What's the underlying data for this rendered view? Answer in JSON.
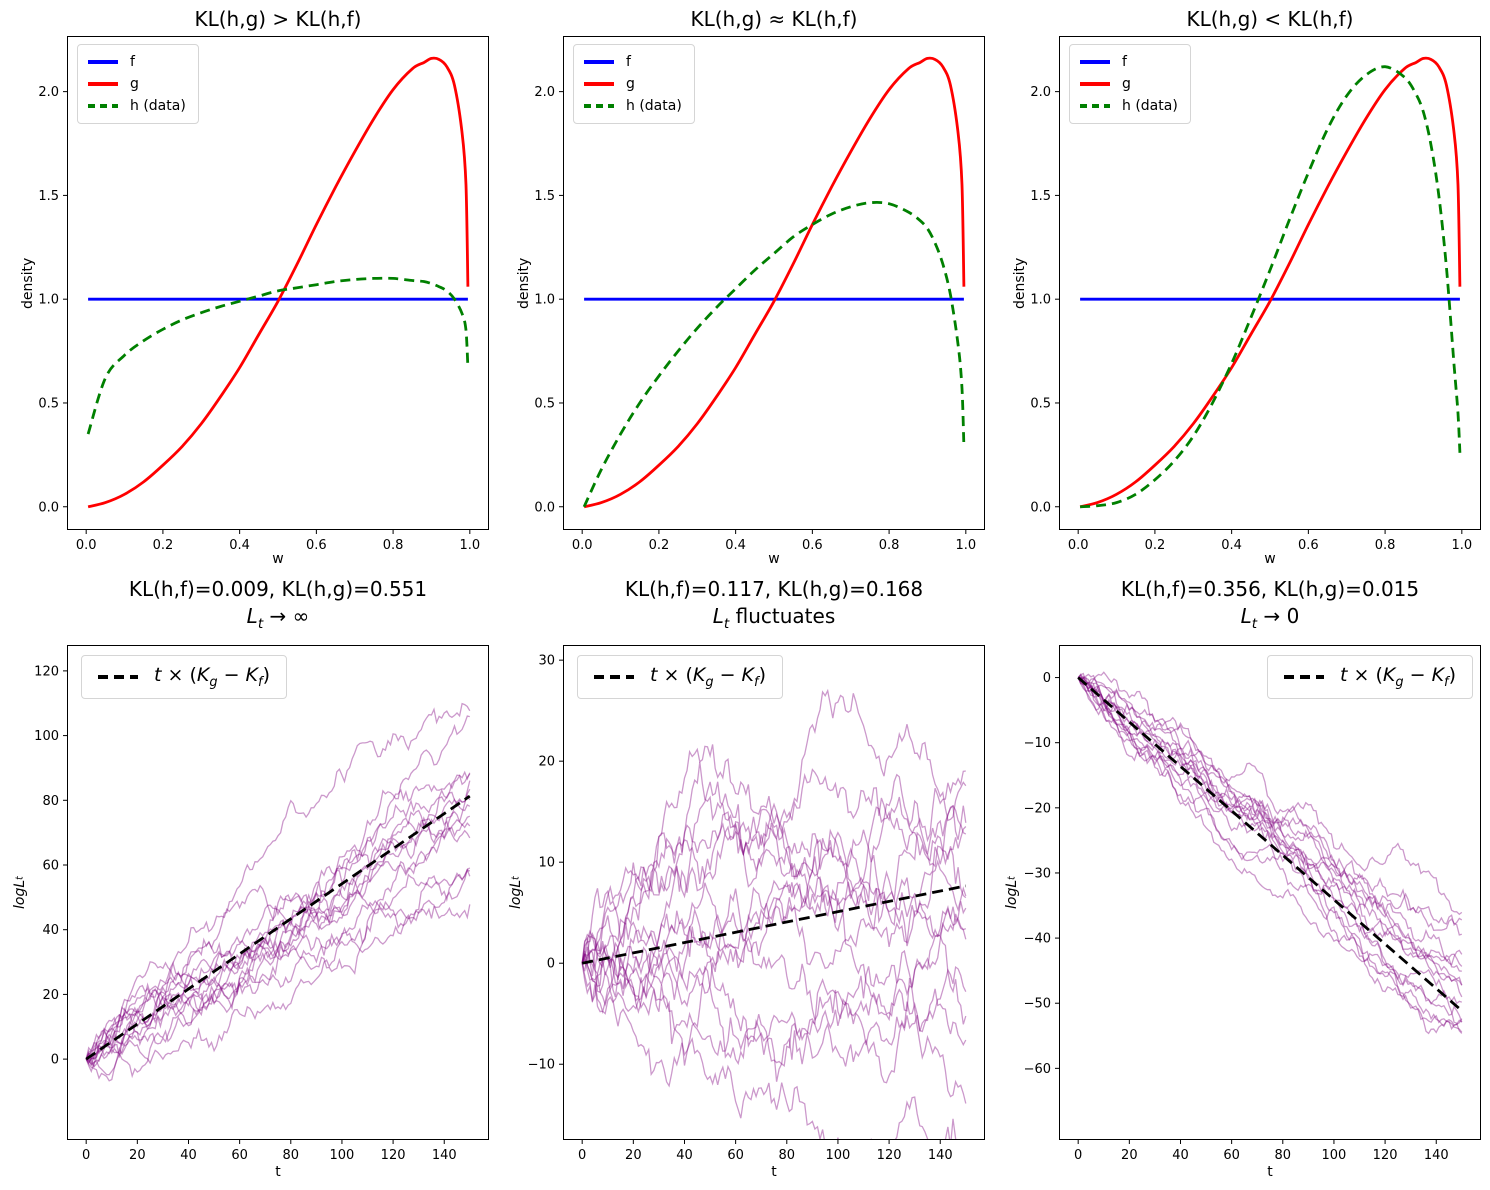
{
  "figure": {
    "background": "#ffffff",
    "rows": 2,
    "cols": 3
  },
  "colors": {
    "f": "#0000ff",
    "g": "#ff0000",
    "h": "#008000",
    "trajectories": "#800080",
    "trend": "#000000"
  },
  "chart_data": [
    {
      "id": "density-kl-greater",
      "type": "line",
      "title": "KL(h,g) > KL(h,f)",
      "xlabel": "w",
      "ylabel": "density",
      "xlim": [
        -0.05,
        1.05
      ],
      "ylim": [
        -0.112,
        2.268
      ],
      "xticks": {
        "values": [
          0.0,
          0.2,
          0.4,
          0.6,
          0.8,
          1.0
        ],
        "labels": [
          "0.0",
          "0.2",
          "0.4",
          "0.6",
          "0.8",
          "1.0"
        ]
      },
      "yticks": {
        "values": [
          0.0,
          0.5,
          1.0,
          1.5,
          2.0
        ],
        "labels": [
          "0.0",
          "0.5",
          "1.0",
          "1.5",
          "2.0"
        ]
      },
      "legend": {
        "location": "upper left",
        "entries": [
          {
            "label": "f",
            "color": "#0000ff",
            "style": "solid"
          },
          {
            "label": "g",
            "color": "#ff0000",
            "style": "solid"
          },
          {
            "label": "h (data)",
            "color": "#008000",
            "style": "dashed"
          }
        ]
      },
      "series": [
        {
          "name": "f",
          "color": "#0000ff",
          "width": 2.8,
          "smooth": false,
          "x": [
            0.005,
            0.995
          ],
          "y": [
            1.0,
            1.0
          ]
        },
        {
          "name": "g",
          "color": "#ff0000",
          "width": 2.8,
          "smooth": true,
          "x": [
            0.005,
            0.05,
            0.1,
            0.15,
            0.2,
            0.25,
            0.3,
            0.35,
            0.4,
            0.45,
            0.5,
            0.55,
            0.6,
            0.65,
            0.7,
            0.75,
            0.8,
            0.85,
            0.88,
            0.9,
            0.92,
            0.94,
            0.96,
            0.98,
            0.99,
            0.995
          ],
          "y": [
            0.0,
            0.02,
            0.06,
            0.12,
            0.2,
            0.29,
            0.4,
            0.53,
            0.67,
            0.83,
            0.99,
            1.17,
            1.36,
            1.54,
            1.71,
            1.87,
            2.01,
            2.11,
            2.14,
            2.16,
            2.155,
            2.12,
            2.03,
            1.8,
            1.55,
            1.06
          ]
        },
        {
          "name": "h",
          "color": "#008000",
          "width": 2.8,
          "dash": "10 6",
          "smooth": true,
          "x": [
            0.005,
            0.05,
            0.1,
            0.15,
            0.2,
            0.25,
            0.3,
            0.35,
            0.4,
            0.45,
            0.5,
            0.55,
            0.6,
            0.65,
            0.7,
            0.75,
            0.8,
            0.85,
            0.88,
            0.9,
            0.92,
            0.94,
            0.96,
            0.98,
            0.99,
            0.995
          ],
          "y": [
            0.35,
            0.62,
            0.73,
            0.8,
            0.855,
            0.9,
            0.935,
            0.965,
            0.99,
            1.015,
            1.04,
            1.055,
            1.07,
            1.085,
            1.095,
            1.1,
            1.1,
            1.09,
            1.085,
            1.075,
            1.06,
            1.04,
            1.0,
            0.93,
            0.85,
            0.67
          ]
        }
      ]
    },
    {
      "id": "density-kl-approx",
      "type": "line",
      "title": "KL(h,g) ≈ KL(h,f)",
      "xlabel": "w",
      "ylabel": "density",
      "xlim": [
        -0.05,
        1.05
      ],
      "ylim": [
        -0.112,
        2.268
      ],
      "xticks": {
        "values": [
          0.0,
          0.2,
          0.4,
          0.6,
          0.8,
          1.0
        ],
        "labels": [
          "0.0",
          "0.2",
          "0.4",
          "0.6",
          "0.8",
          "1.0"
        ]
      },
      "yticks": {
        "values": [
          0.0,
          0.5,
          1.0,
          1.5,
          2.0
        ],
        "labels": [
          "0.0",
          "0.5",
          "1.0",
          "1.5",
          "2.0"
        ]
      },
      "legend": {
        "location": "upper left",
        "entries": [
          {
            "label": "f",
            "color": "#0000ff",
            "style": "solid"
          },
          {
            "label": "g",
            "color": "#ff0000",
            "style": "solid"
          },
          {
            "label": "h (data)",
            "color": "#008000",
            "style": "dashed"
          }
        ]
      },
      "series": [
        {
          "name": "f",
          "color": "#0000ff",
          "width": 2.8,
          "smooth": false,
          "x": [
            0.005,
            0.995
          ],
          "y": [
            1.0,
            1.0
          ]
        },
        {
          "name": "g",
          "color": "#ff0000",
          "width": 2.8,
          "smooth": true,
          "x": [
            0.005,
            0.05,
            0.1,
            0.15,
            0.2,
            0.25,
            0.3,
            0.35,
            0.4,
            0.45,
            0.5,
            0.55,
            0.6,
            0.65,
            0.7,
            0.75,
            0.8,
            0.85,
            0.88,
            0.9,
            0.92,
            0.94,
            0.96,
            0.98,
            0.99,
            0.995
          ],
          "y": [
            0.0,
            0.02,
            0.06,
            0.12,
            0.2,
            0.29,
            0.4,
            0.53,
            0.67,
            0.83,
            0.99,
            1.17,
            1.36,
            1.54,
            1.71,
            1.87,
            2.01,
            2.11,
            2.14,
            2.16,
            2.155,
            2.12,
            2.03,
            1.8,
            1.55,
            1.06
          ]
        },
        {
          "name": "h",
          "color": "#008000",
          "width": 2.8,
          "dash": "10 6",
          "smooth": true,
          "x": [
            0.005,
            0.05,
            0.1,
            0.15,
            0.2,
            0.25,
            0.3,
            0.35,
            0.4,
            0.45,
            0.5,
            0.55,
            0.6,
            0.65,
            0.7,
            0.75,
            0.8,
            0.85,
            0.88,
            0.9,
            0.92,
            0.94,
            0.96,
            0.98,
            0.99,
            0.995
          ],
          "y": [
            0.0,
            0.18,
            0.35,
            0.5,
            0.63,
            0.75,
            0.86,
            0.96,
            1.05,
            1.14,
            1.22,
            1.3,
            1.36,
            1.41,
            1.445,
            1.465,
            1.46,
            1.42,
            1.38,
            1.34,
            1.27,
            1.17,
            1.02,
            0.78,
            0.57,
            0.29
          ]
        }
      ]
    },
    {
      "id": "density-kl-less",
      "type": "line",
      "title": "KL(h,g) < KL(h,f)",
      "xlabel": "w",
      "ylabel": "density",
      "xlim": [
        -0.05,
        1.05
      ],
      "ylim": [
        -0.112,
        2.268
      ],
      "xticks": {
        "values": [
          0.0,
          0.2,
          0.4,
          0.6,
          0.8,
          1.0
        ],
        "labels": [
          "0.0",
          "0.2",
          "0.4",
          "0.6",
          "0.8",
          "1.0"
        ]
      },
      "yticks": {
        "values": [
          0.0,
          0.5,
          1.0,
          1.5,
          2.0
        ],
        "labels": [
          "0.0",
          "0.5",
          "1.0",
          "1.5",
          "2.0"
        ]
      },
      "legend": {
        "location": "upper left",
        "entries": [
          {
            "label": "f",
            "color": "#0000ff",
            "style": "solid"
          },
          {
            "label": "g",
            "color": "#ff0000",
            "style": "solid"
          },
          {
            "label": "h (data)",
            "color": "#008000",
            "style": "dashed"
          }
        ]
      },
      "series": [
        {
          "name": "f",
          "color": "#0000ff",
          "width": 2.8,
          "smooth": false,
          "x": [
            0.005,
            0.995
          ],
          "y": [
            1.0,
            1.0
          ]
        },
        {
          "name": "g",
          "color": "#ff0000",
          "width": 2.8,
          "smooth": true,
          "x": [
            0.005,
            0.05,
            0.1,
            0.15,
            0.2,
            0.25,
            0.3,
            0.35,
            0.4,
            0.45,
            0.5,
            0.55,
            0.6,
            0.65,
            0.7,
            0.75,
            0.8,
            0.85,
            0.88,
            0.9,
            0.92,
            0.94,
            0.96,
            0.98,
            0.99,
            0.995
          ],
          "y": [
            0.0,
            0.02,
            0.06,
            0.12,
            0.2,
            0.29,
            0.4,
            0.53,
            0.67,
            0.83,
            0.99,
            1.17,
            1.36,
            1.54,
            1.71,
            1.87,
            2.01,
            2.11,
            2.14,
            2.16,
            2.155,
            2.12,
            2.03,
            1.8,
            1.55,
            1.06
          ]
        },
        {
          "name": "h",
          "color": "#008000",
          "width": 2.8,
          "dash": "10 6",
          "smooth": true,
          "x": [
            0.005,
            0.05,
            0.1,
            0.15,
            0.2,
            0.25,
            0.3,
            0.35,
            0.4,
            0.45,
            0.5,
            0.55,
            0.6,
            0.65,
            0.7,
            0.75,
            0.8,
            0.85,
            0.88,
            0.9,
            0.92,
            0.94,
            0.96,
            0.98,
            0.99,
            0.995
          ],
          "y": [
            0.0,
            0.005,
            0.02,
            0.06,
            0.13,
            0.22,
            0.34,
            0.5,
            0.69,
            0.91,
            1.14,
            1.38,
            1.61,
            1.82,
            1.98,
            2.08,
            2.12,
            2.07,
            1.99,
            1.9,
            1.74,
            1.5,
            1.15,
            0.68,
            0.45,
            0.26
          ]
        }
      ]
    },
    {
      "id": "loglik-diverges",
      "type": "line",
      "title_line1": "KL(h,f)=0.009, KL(h,g)=0.551",
      "title_line2": {
        "main": "L",
        "sub": "t",
        "rest": " → ∞"
      },
      "kl_hf": 0.009,
      "kl_hg": 0.551,
      "xlabel": "t",
      "ylabel_parts": {
        "main": "logL",
        "sub": "t"
      },
      "xlim": [
        -7.5,
        157.5
      ],
      "ylim": [
        -25,
        128
      ],
      "xticks": {
        "values": [
          0,
          20,
          40,
          60,
          80,
          100,
          120,
          140
        ],
        "labels": [
          "0",
          "20",
          "40",
          "60",
          "80",
          "100",
          "120",
          "140"
        ]
      },
      "yticks": {
        "values": [
          0,
          20,
          40,
          60,
          80,
          100,
          120
        ],
        "labels": [
          "0",
          "20",
          "40",
          "60",
          "80",
          "100",
          "120"
        ]
      },
      "legend": {
        "location": "upper left",
        "entries": [
          {
            "label_parts": {
              "a": "t",
              "b": " × (",
              "c": "K",
              "d": "g",
              "e": " − ",
              "f": "K",
              "g": "f",
              "h": ")"
            },
            "color": "#000000",
            "style": "dashed"
          }
        ]
      },
      "series": [
        {
          "type": "walks",
          "n": 15,
          "steps": 150,
          "start": 0,
          "drift": 0.542,
          "sigma": 1.6,
          "seed": 42,
          "color": "#800080",
          "opacity": 0.4,
          "width": 1.3
        },
        {
          "type": "trend",
          "slope": 0.542,
          "x": [
            0,
            150
          ],
          "color": "#000000",
          "width": 2.8,
          "dash": "11 6"
        }
      ]
    },
    {
      "id": "loglik-fluctuates",
      "type": "line",
      "title_line1": "KL(h,f)=0.117, KL(h,g)=0.168",
      "title_line2": {
        "main": "L",
        "sub": "t",
        "rest": " fluctuates"
      },
      "kl_hf": 0.117,
      "kl_hg": 0.168,
      "xlabel": "t",
      "ylabel_parts": {
        "main": "logL",
        "sub": "t"
      },
      "xlim": [
        -7.5,
        157.5
      ],
      "ylim": [
        -17.5,
        31.5
      ],
      "xticks": {
        "values": [
          0,
          20,
          40,
          60,
          80,
          100,
          120,
          140
        ],
        "labels": [
          "0",
          "20",
          "40",
          "60",
          "80",
          "100",
          "120",
          "140"
        ]
      },
      "yticks": {
        "values": [
          -10,
          0,
          10,
          20,
          30
        ],
        "labels": [
          "−10",
          "0",
          "10",
          "20",
          "30"
        ]
      },
      "legend": {
        "location": "upper left",
        "entries": [
          {
            "label_parts": {
              "a": "t",
              "b": " × (",
              "c": "K",
              "d": "g",
              "e": " − ",
              "f": "K",
              "g": "f",
              "h": ")"
            },
            "color": "#000000",
            "style": "dashed"
          }
        ]
      },
      "series": [
        {
          "type": "walks",
          "n": 15,
          "steps": 150,
          "start": 0,
          "drift": 0.051,
          "sigma": 1.05,
          "seed": 7,
          "color": "#800080",
          "opacity": 0.4,
          "width": 1.3
        },
        {
          "type": "trend",
          "slope": 0.051,
          "x": [
            0,
            150
          ],
          "color": "#000000",
          "width": 2.8,
          "dash": "11 6"
        }
      ]
    },
    {
      "id": "loglik-vanishes",
      "type": "line",
      "title_line1": "KL(h,f)=0.356, KL(h,g)=0.015",
      "title_line2": {
        "main": "L",
        "sub": "t",
        "rest": " → 0"
      },
      "kl_hf": 0.356,
      "kl_hg": 0.015,
      "xlabel": "t",
      "ylabel_parts": {
        "main": "logL",
        "sub": "t"
      },
      "xlim": [
        -7.5,
        157.5
      ],
      "ylim": [
        -71,
        5
      ],
      "xticks": {
        "values": [
          0,
          20,
          40,
          60,
          80,
          100,
          120,
          140
        ],
        "labels": [
          "0",
          "20",
          "40",
          "60",
          "80",
          "100",
          "120",
          "140"
        ]
      },
      "yticks": {
        "values": [
          -60,
          -50,
          -40,
          -30,
          -20,
          -10,
          0
        ],
        "labels": [
          "−60",
          "−50",
          "−40",
          "−30",
          "−20",
          "−10",
          "0"
        ]
      },
      "legend": {
        "location": "upper right",
        "entries": [
          {
            "label_parts": {
              "a": "t",
              "b": " × (",
              "c": "K",
              "d": "g",
              "e": " − ",
              "f": "K",
              "g": "f",
              "h": ")"
            },
            "color": "#000000",
            "style": "dashed"
          }
        ]
      },
      "series": [
        {
          "type": "walks",
          "n": 15,
          "steps": 150,
          "start": 0,
          "drift": -0.341,
          "sigma": 0.62,
          "seed": 13,
          "color": "#800080",
          "opacity": 0.4,
          "width": 1.3
        },
        {
          "type": "trend",
          "slope": -0.341,
          "x": [
            0,
            150
          ],
          "color": "#000000",
          "width": 2.8,
          "dash": "11 6"
        }
      ]
    }
  ]
}
